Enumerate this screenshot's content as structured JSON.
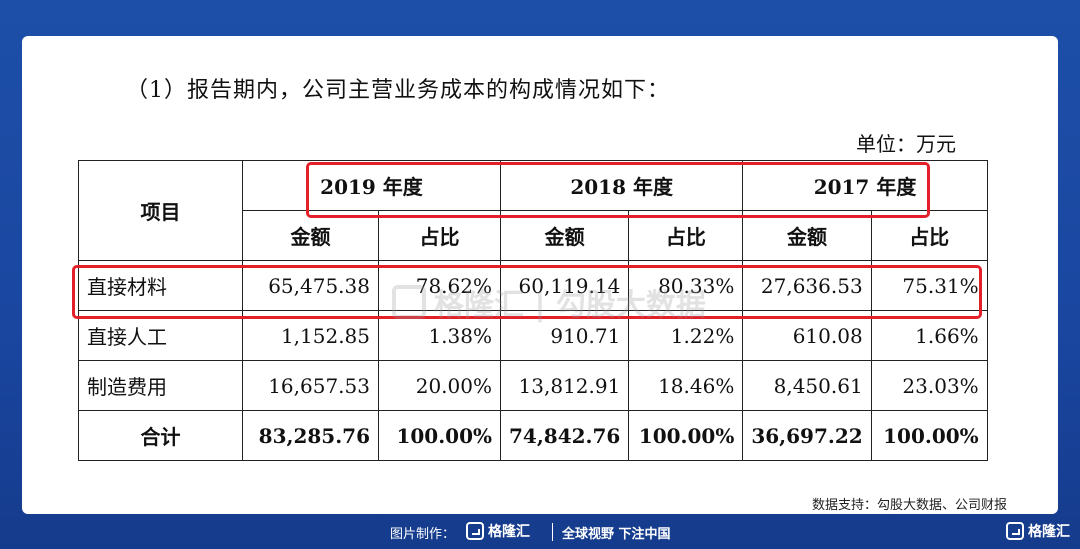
{
  "heading": "（1）报告期内，公司主营业务成本的构成情况如下：",
  "unit": "单位：万元",
  "table": {
    "item_header": "项目",
    "years": [
      "2019 年度",
      "2018 年度",
      "2017 年度"
    ],
    "sub_headers": [
      "金额",
      "占比",
      "金额",
      "占比",
      "金额",
      "占比"
    ],
    "rows": [
      {
        "label": "直接材料",
        "cells": [
          "65,475.38",
          "78.62%",
          "60,119.14",
          "80.33%",
          "27,636.53",
          "75.31%"
        ]
      },
      {
        "label": "直接人工",
        "cells": [
          "1,152.85",
          "1.38%",
          "910.71",
          "1.22%",
          "610.08",
          "1.66%"
        ]
      },
      {
        "label": "制造费用",
        "cells": [
          "16,657.53",
          "20.00%",
          "13,812.91",
          "18.46%",
          "8,450.61",
          "23.03%"
        ]
      }
    ],
    "total": {
      "label": "合计",
      "cells": [
        "83,285.76",
        "100.00%",
        "74,842.76",
        "100.00%",
        "36,697.22",
        "100.00%"
      ]
    }
  },
  "watermark": "格隆汇 | 勾股大数据",
  "source": "数据支持：勾股大数据、公司财报",
  "footer": {
    "made_by": "图片制作：",
    "brand": "格隆汇",
    "slogan": "全球视野 下注中国",
    "corner_brand": "格隆汇"
  },
  "colors": {
    "highlight": "#e3202a",
    "background": "#1d4fa8"
  }
}
